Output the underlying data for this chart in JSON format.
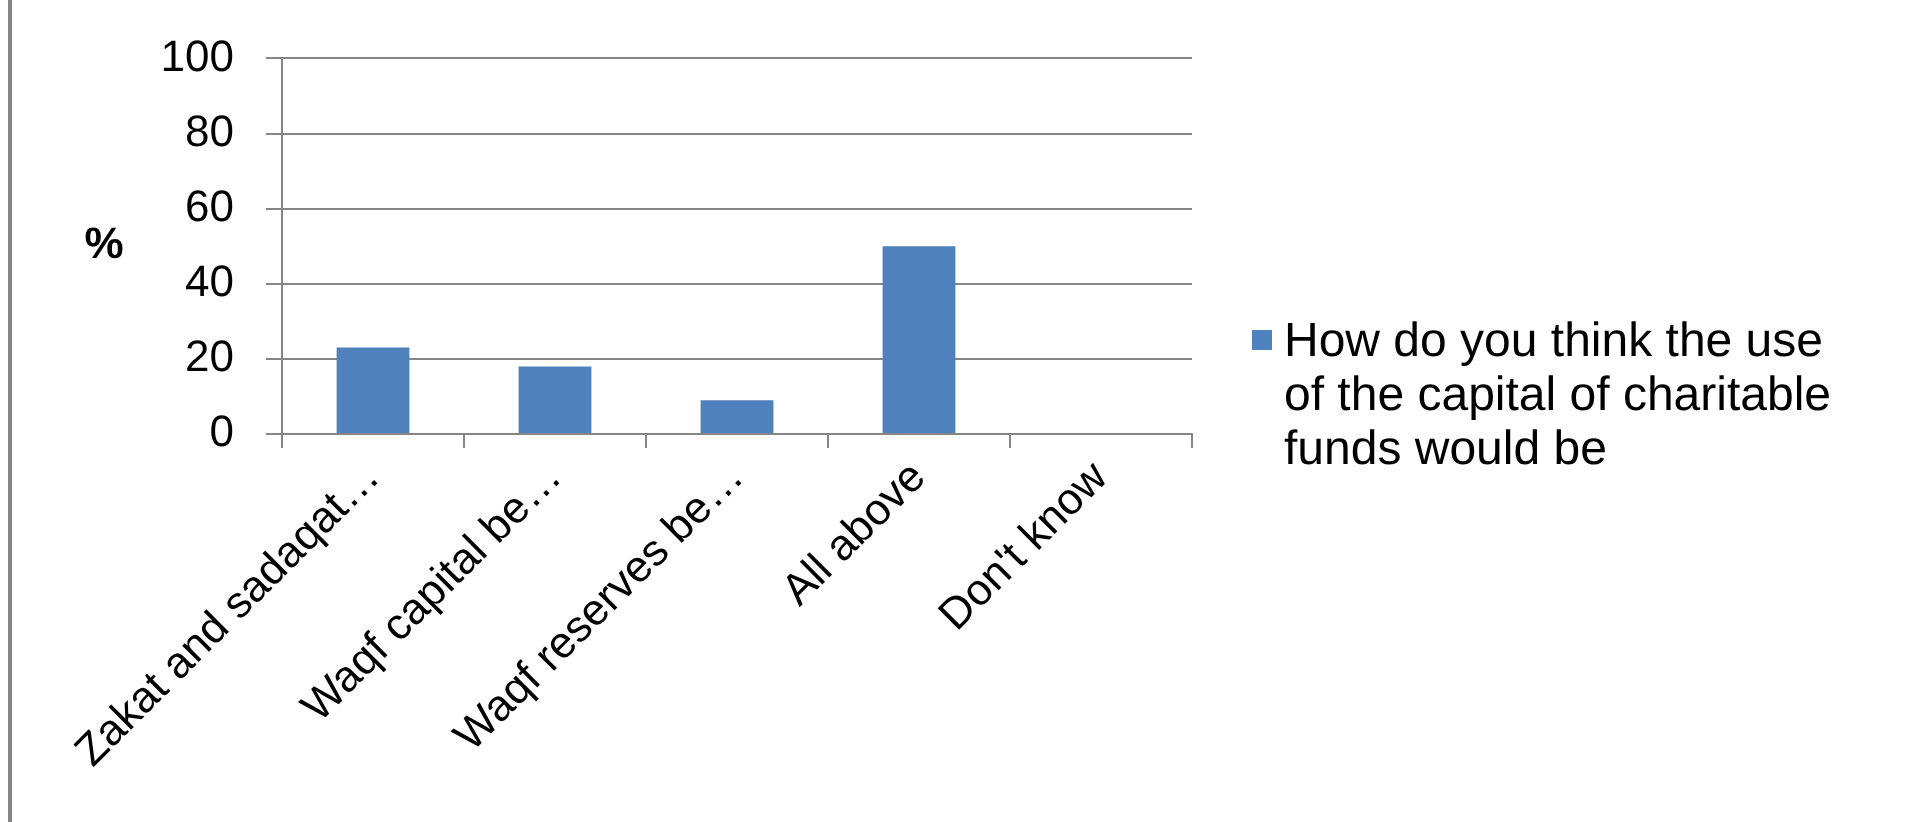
{
  "chart_data": {
    "type": "bar",
    "ylabel": "%",
    "categories": [
      "Zakat and sadaqat…",
      "Waqf capital be…",
      "Waqf reserves be…",
      "All above",
      "Don't know"
    ],
    "series": [
      {
        "name": "How do you think the use of the capital of charitable funds would be",
        "color": "#4f81bd",
        "values": [
          23,
          18,
          9,
          50,
          0
        ]
      }
    ],
    "ylim": [
      0,
      100
    ],
    "yticks": [
      0,
      20,
      40,
      60,
      80,
      100
    ],
    "grid": "y",
    "legend": "right"
  }
}
